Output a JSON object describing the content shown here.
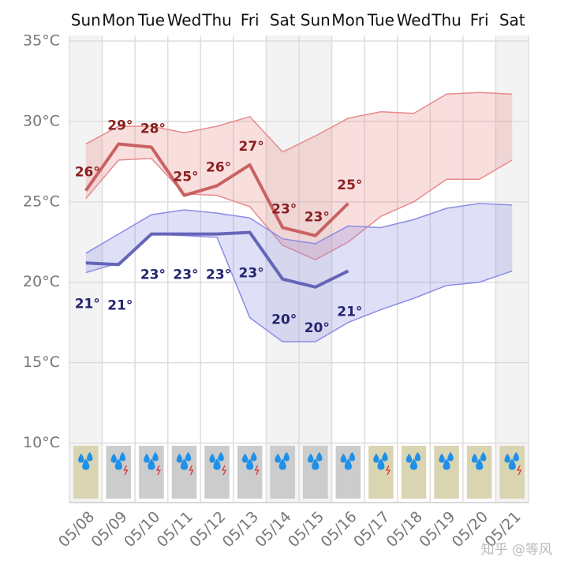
{
  "chart_data": {
    "type": "weather-band",
    "categories": [
      "05/08",
      "05/09",
      "05/10",
      "05/11",
      "05/12",
      "05/13",
      "05/14",
      "05/15",
      "05/16",
      "05/17",
      "05/18",
      "05/19",
      "05/20",
      "05/21"
    ],
    "weekdays": [
      "Sun",
      "Mon",
      "Tue",
      "Wed",
      "Thu",
      "Fri",
      "Sat",
      "Sun",
      "Mon",
      "Tue",
      "Wed",
      "Thu",
      "Fri",
      "Sat"
    ],
    "shaded": [
      true,
      false,
      false,
      false,
      false,
      false,
      true,
      true,
      false,
      false,
      false,
      false,
      false,
      true
    ],
    "ylim": [
      6.3,
      35
    ],
    "yticks": [
      {
        "value": 35,
        "label": "35°C"
      },
      {
        "value": 30,
        "label": "30°C"
      },
      {
        "value": 25,
        "label": "25°C"
      },
      {
        "value": 20,
        "label": "20°C"
      },
      {
        "value": 15,
        "label": "15°C"
      },
      {
        "value": 10,
        "label": "10°C"
      }
    ],
    "grid": true,
    "bands": [
      {
        "color": "#e98a8a",
        "upper": [
          28.6,
          29.7,
          29.7,
          29.3,
          29.7,
          30.3,
          28.1,
          29.1,
          30.2,
          30.6,
          30.5,
          31.7,
          31.8,
          31.7
        ],
        "lower": [
          25.2,
          27.6,
          27.7,
          25.5,
          25.4,
          24.7,
          22.3,
          21.4,
          22.5,
          24.1,
          25.0,
          26.4,
          26.4,
          27.6
        ]
      },
      {
        "color": "#8c8ce6",
        "upper": [
          21.8,
          23.0,
          24.2,
          24.5,
          24.3,
          24.0,
          22.7,
          22.4,
          23.5,
          23.4,
          23.9,
          24.6,
          24.9,
          24.8
        ],
        "lower": [
          20.6,
          21.2,
          23.0,
          22.9,
          22.8,
          17.8,
          16.3,
          16.3,
          17.5,
          18.3,
          19.0,
          19.8,
          20.0,
          20.7
        ]
      }
    ],
    "series": [
      {
        "color": "#c96262",
        "label_color": "#8b1f1f",
        "label_side": "above",
        "values": [
          25.7,
          28.6,
          28.4,
          25.4,
          26.0,
          27.3,
          23.4,
          22.9,
          24.9,
          null,
          null,
          null,
          null,
          null
        ],
        "value_labels": [
          "26°",
          "29°",
          "28°",
          "25°",
          "26°",
          "27°",
          "23°",
          "23°",
          "25°",
          null,
          null,
          null,
          null,
          null
        ]
      },
      {
        "color": "#6565b8",
        "label_color": "#25256f",
        "label_side": "below",
        "values": [
          21.2,
          21.1,
          23.0,
          23.0,
          23.0,
          23.1,
          20.2,
          19.7,
          20.7,
          null,
          null,
          null,
          null,
          null
        ],
        "value_labels": [
          "21°",
          "21°",
          "23°",
          "23°",
          "23°",
          "23°",
          "20°",
          "20°",
          "21°",
          null,
          null,
          null,
          null,
          null
        ]
      }
    ],
    "icon_background": [
      "#d9d5b2",
      "#cccccc",
      "#cccccc",
      "#cccccc",
      "#cccccc",
      "#cccccc",
      "#cccccc",
      "#cccccc",
      "#cccccc",
      "#d9d5b2",
      "#d9d5b2",
      "#d9d5b2",
      "#d9d5b2",
      "#d9d5b2"
    ],
    "thunder": [
      false,
      true,
      true,
      true,
      true,
      true,
      false,
      false,
      false,
      true,
      false,
      false,
      false,
      true
    ],
    "watermark": "知乎 @等风"
  }
}
